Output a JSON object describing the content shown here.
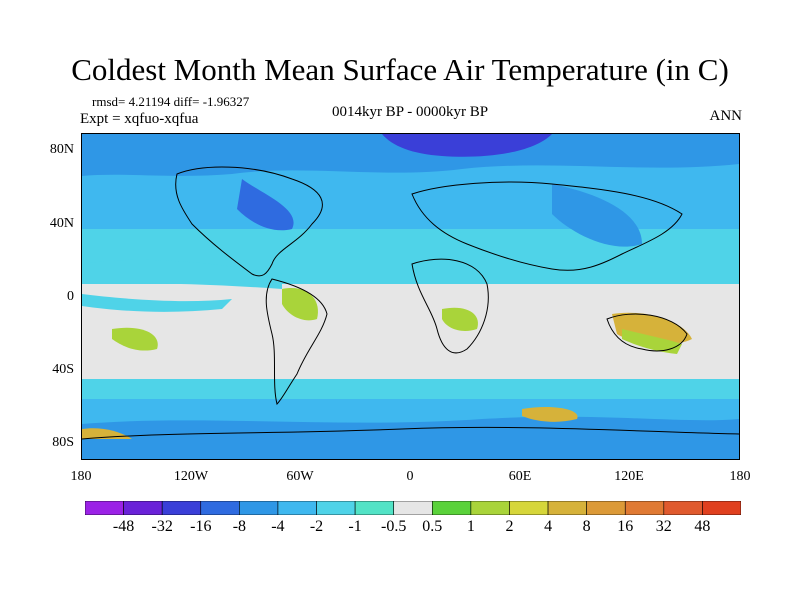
{
  "title": "Coldest Month Mean Surface Air Temperature (in C)",
  "stats_line": "rmsd= 4.21194 diff= -1.96327",
  "experiment": "Expt = xqfuo-xqfua",
  "period": "0014kyr BP - 0000kyr BP",
  "season": "ANN",
  "map": {
    "lat_labels": [
      "80N",
      "40N",
      "0",
      "40S",
      "80S"
    ],
    "lon_labels": [
      "180",
      "120W",
      "60W",
      "0",
      "60E",
      "120E",
      "180"
    ]
  },
  "colorbar": {
    "colors": [
      "#9b22e6",
      "#6a22d8",
      "#3a3fd8",
      "#2f6be0",
      "#2f97e6",
      "#3fb8ef",
      "#4fd3e8",
      "#52e3c6",
      "#e6e6e6",
      "#5ad23a",
      "#a9d43a",
      "#d6d63a",
      "#d6b23a",
      "#dc9a38",
      "#e07a34",
      "#e05a2e",
      "#e0401f"
    ],
    "labels": [
      "-48",
      "-32",
      "-16",
      "-8",
      "-4",
      "-2",
      "-1",
      "-0.5",
      "0.5",
      "1",
      "2",
      "4",
      "8",
      "16",
      "32",
      "48"
    ]
  },
  "legend_colors": {
    "ocean_neutral": "#e6e6e6",
    "cooling_light": "#4fd3e8",
    "cooling_medium": "#3fb8ef",
    "cooling_strong": "#2f6be0",
    "cooling_extreme": "#3a3fd8",
    "warming_light": "#a9d43a",
    "warming_medium": "#d6b23a",
    "warming_strong": "#e07a34"
  }
}
